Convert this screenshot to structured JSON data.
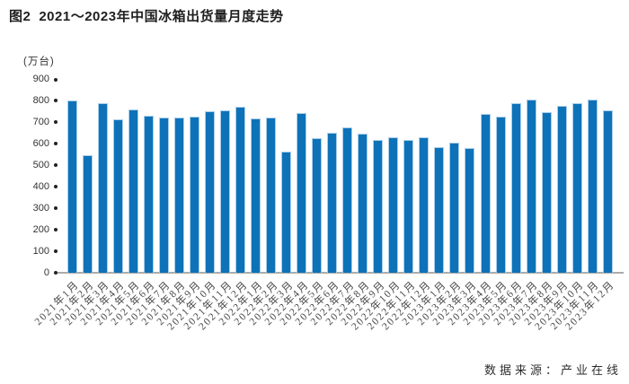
{
  "header": {
    "figure_no": "图2",
    "title": "2021～2023年中国冰箱出货量月度走势"
  },
  "footer": {
    "source": "数据来源：产业在线"
  },
  "chart_data": {
    "type": "bar",
    "title": "图2 2021～2023年中国冰箱出货量月度走势",
    "unit_label": "(万台)",
    "xlabel": "",
    "ylabel": "万台",
    "ylim": [
      0,
      900
    ],
    "yticks": [
      900,
      800,
      700,
      600,
      500,
      400,
      300,
      200,
      100,
      0
    ],
    "grid": false,
    "legend": false,
    "bar_color": "#0e72b8",
    "bar_edge_color": "#a9cde9",
    "axis_line_color": "#ababab",
    "tick_dot_color": "#222222",
    "categories": [
      "2021年1月",
      "2021年2月",
      "2021年3月",
      "2021年4月",
      "2021年5月",
      "2021年6月",
      "2021年7月",
      "2021年8月",
      "2021年9月",
      "2021年10月",
      "2021年11月",
      "2021年12月",
      "2022年1月",
      "2022年2月",
      "2022年3月",
      "2022年4月",
      "2022年5月",
      "2022年6月",
      "2022年7月",
      "2022年8月",
      "2022年9月",
      "2022年10月",
      "2022年11月",
      "2022年12月",
      "2023年1月",
      "2023年2月",
      "2023年3月",
      "2023年4月",
      "2023年5月",
      "2023年6月",
      "2023年7月",
      "2023年8月",
      "2023年9月",
      "2023年10月",
      "2023年11月",
      "2023年12月"
    ],
    "values": [
      800,
      548,
      790,
      713,
      760,
      729,
      721,
      721,
      726,
      750,
      757,
      774,
      720,
      722,
      564,
      745,
      628,
      652,
      677,
      646,
      620,
      629,
      620,
      629,
      584,
      607,
      580,
      741,
      726,
      790,
      807,
      746,
      778,
      790,
      808,
      758
    ]
  }
}
